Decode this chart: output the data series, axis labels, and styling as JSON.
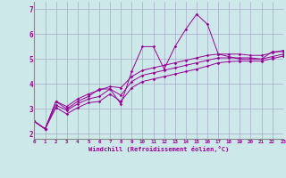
{
  "background_color": "#cce8e8",
  "line_color": "#990099",
  "grid_color": "#aaaacc",
  "xlabel": "Windchill (Refroidissement éolien,°C)",
  "xlabel_color": "#990099",
  "xlim": [
    0,
    23
  ],
  "ylim": [
    1.8,
    7.3
  ],
  "xticks": [
    0,
    1,
    2,
    3,
    4,
    5,
    6,
    7,
    8,
    9,
    10,
    11,
    12,
    13,
    14,
    15,
    16,
    17,
    18,
    19,
    20,
    21,
    22,
    23
  ],
  "yticks": [
    2,
    3,
    4,
    5,
    6,
    7
  ],
  "line1_x": [
    0,
    1,
    2,
    3,
    4,
    5,
    6,
    7,
    8,
    9,
    10,
    11,
    12,
    13,
    14,
    15,
    16,
    17,
    18,
    19,
    20,
    21,
    22,
    23
  ],
  "line1_y": [
    2.5,
    2.2,
    3.3,
    3.0,
    3.3,
    3.5,
    3.8,
    3.8,
    3.2,
    4.5,
    5.5,
    5.5,
    4.6,
    5.5,
    6.2,
    6.8,
    6.4,
    5.2,
    5.1,
    5.0,
    5.0,
    5.0,
    5.3,
    5.3
  ],
  "line2_x": [
    0,
    1,
    2,
    3,
    4,
    5,
    6,
    7,
    8,
    9,
    10,
    11,
    12,
    13,
    14,
    15,
    16,
    17,
    18,
    19,
    20,
    21,
    22,
    23
  ],
  "line2_y": [
    2.5,
    2.2,
    3.3,
    3.1,
    3.4,
    3.6,
    3.75,
    3.9,
    3.85,
    4.3,
    4.55,
    4.65,
    4.75,
    4.85,
    4.95,
    5.05,
    5.15,
    5.2,
    5.2,
    5.2,
    5.15,
    5.15,
    5.25,
    5.35
  ],
  "line3_x": [
    0,
    1,
    2,
    3,
    4,
    5,
    6,
    7,
    8,
    9,
    10,
    11,
    12,
    13,
    14,
    15,
    16,
    17,
    18,
    19,
    20,
    21,
    22,
    23
  ],
  "line3_y": [
    2.5,
    2.2,
    3.15,
    2.95,
    3.2,
    3.4,
    3.5,
    3.8,
    3.55,
    4.1,
    4.35,
    4.45,
    4.55,
    4.65,
    4.75,
    4.85,
    4.95,
    5.05,
    5.05,
    5.05,
    5.05,
    5.0,
    5.1,
    5.2
  ],
  "line4_x": [
    0,
    1,
    2,
    3,
    4,
    5,
    6,
    7,
    8,
    9,
    10,
    11,
    12,
    13,
    14,
    15,
    16,
    17,
    18,
    19,
    20,
    21,
    22,
    23
  ],
  "line4_y": [
    2.5,
    2.2,
    3.05,
    2.8,
    3.05,
    3.25,
    3.3,
    3.6,
    3.3,
    3.85,
    4.1,
    4.2,
    4.3,
    4.4,
    4.5,
    4.6,
    4.72,
    4.85,
    4.9,
    4.92,
    4.92,
    4.92,
    5.02,
    5.12
  ]
}
